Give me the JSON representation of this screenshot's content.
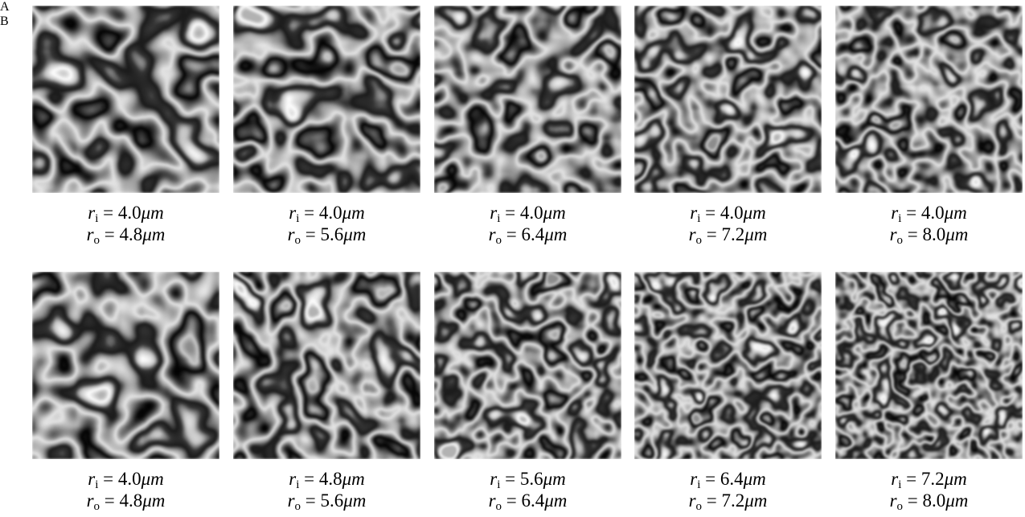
{
  "rows": [
    {
      "label": "A",
      "panels": [
        {
          "lines": [
            {
              "var": "r",
              "sub": "i",
              "rel": "= 4.0",
              "unit": "μm"
            },
            {
              "var": "r",
              "sub": "o",
              "rel": "= 4.8",
              "unit": "μm"
            }
          ]
        },
        {
          "lines": [
            {
              "var": "r",
              "sub": "i",
              "rel": "= 4.0",
              "unit": "μm"
            },
            {
              "var": "r",
              "sub": "o",
              "rel": "= 5.6",
              "unit": "μm"
            }
          ]
        },
        {
          "lines": [
            {
              "var": "r",
              "sub": "i",
              "rel": "= 4.0",
              "unit": "μm"
            },
            {
              "var": "r",
              "sub": "o",
              "rel": "= 6.4",
              "unit": "μm"
            }
          ]
        },
        {
          "lines": [
            {
              "var": "r",
              "sub": "i",
              "rel": "= 4.0",
              "unit": "μm"
            },
            {
              "var": "r",
              "sub": "o",
              "rel": "= 7.2",
              "unit": "μm"
            }
          ]
        },
        {
          "lines": [
            {
              "var": "r",
              "sub": "i",
              "rel": "= 4.0",
              "unit": "μm"
            },
            {
              "var": "r",
              "sub": "o",
              "rel": "= 8.0",
              "unit": "μm"
            }
          ]
        }
      ]
    },
    {
      "label": "B",
      "panels": [
        {
          "lines": [
            {
              "var": "r",
              "sub": "i",
              "rel": "= 4.0",
              "unit": "μm"
            },
            {
              "var": "r",
              "sub": "o",
              "rel": "= 4.8",
              "unit": "μm"
            }
          ]
        },
        {
          "lines": [
            {
              "var": "r",
              "sub": "i",
              "rel": "= 4.8",
              "unit": "μm"
            },
            {
              "var": "r",
              "sub": "o",
              "rel": "= 5.6",
              "unit": "μm"
            }
          ]
        },
        {
          "lines": [
            {
              "var": "r",
              "sub": "i",
              "rel": "= 5.6",
              "unit": "μm"
            },
            {
              "var": "r",
              "sub": "o",
              "rel": "= 6.4",
              "unit": "μm"
            }
          ]
        },
        {
          "lines": [
            {
              "var": "r",
              "sub": "i",
              "rel": "= 6.4",
              "unit": "μm"
            },
            {
              "var": "r",
              "sub": "o",
              "rel": "= 7.2",
              "unit": "μm"
            }
          ]
        },
        {
          "lines": [
            {
              "var": "r",
              "sub": "i",
              "rel": "= 7.2",
              "unit": "μm"
            },
            {
              "var": "r",
              "sub": "o",
              "rel": "= 8.0",
              "unit": "μm"
            }
          ]
        }
      ]
    }
  ]
}
